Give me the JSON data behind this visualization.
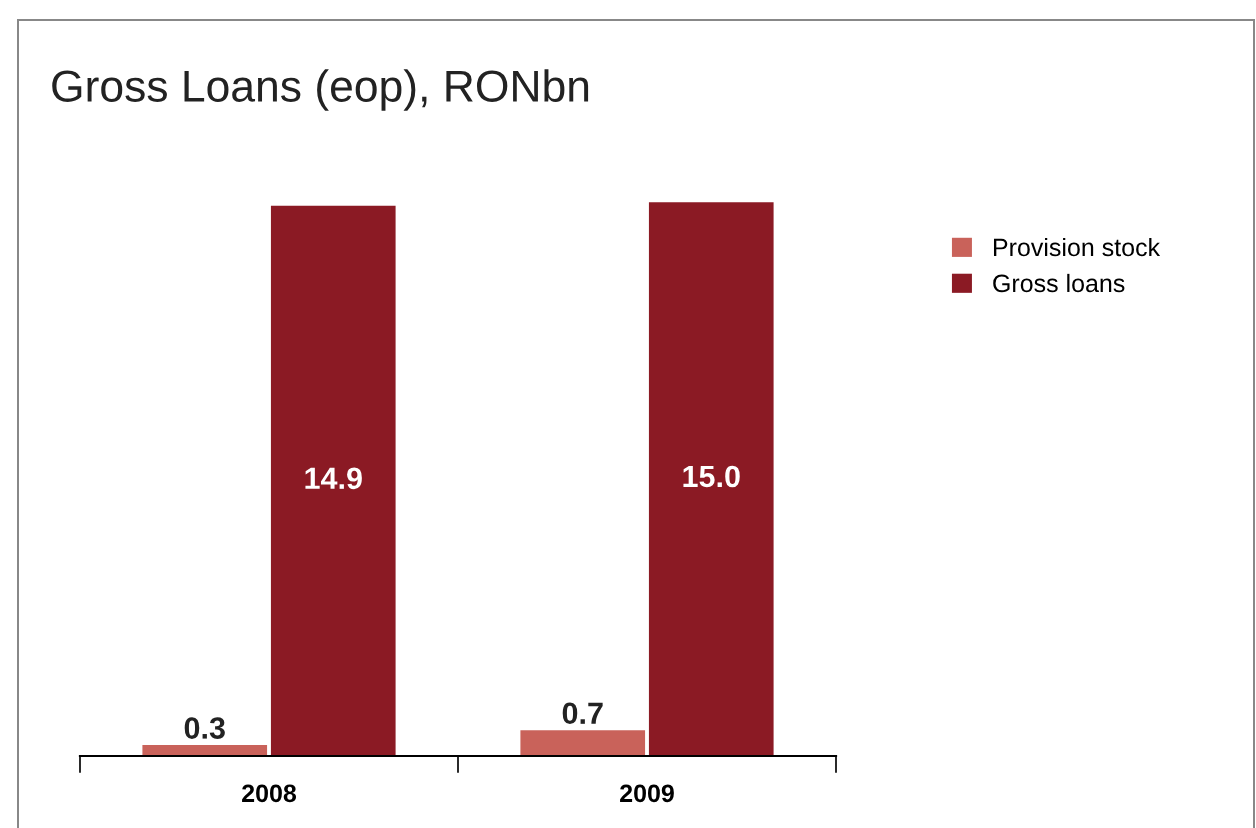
{
  "chart_data": {
    "type": "bar",
    "title": "Gross Loans (eop), RONbn",
    "categories": [
      "2008",
      "2009"
    ],
    "series": [
      {
        "name": "Provision stock",
        "color": "#c9625a",
        "values": [
          0.3,
          0.7
        ],
        "value_labels": [
          "0.3",
          "0.7"
        ]
      },
      {
        "name": "Gross loans",
        "color": "#8b1a24",
        "values": [
          14.9,
          15.0
        ],
        "value_labels": [
          "14.9",
          "15.0"
        ]
      }
    ],
    "legend": "right",
    "grid": false
  }
}
